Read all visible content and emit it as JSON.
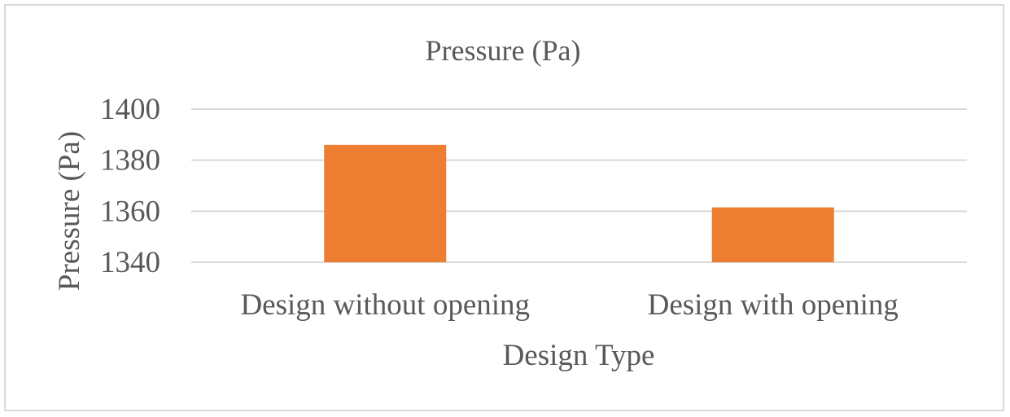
{
  "chart_data": {
    "type": "bar",
    "title": "Pressure (Pa)",
    "xlabel": "Design Type",
    "ylabel": "Pressure (Pa)",
    "categories": [
      "Design without opening",
      "Design with opening"
    ],
    "series": [
      {
        "values": [
          1386,
          1361.5
        ]
      }
    ],
    "ylim": [
      1340,
      1400
    ],
    "yticks": [
      1340,
      1360,
      1380,
      1400
    ],
    "grid": true,
    "legend": "none",
    "bar_color": "#ed7d31"
  }
}
